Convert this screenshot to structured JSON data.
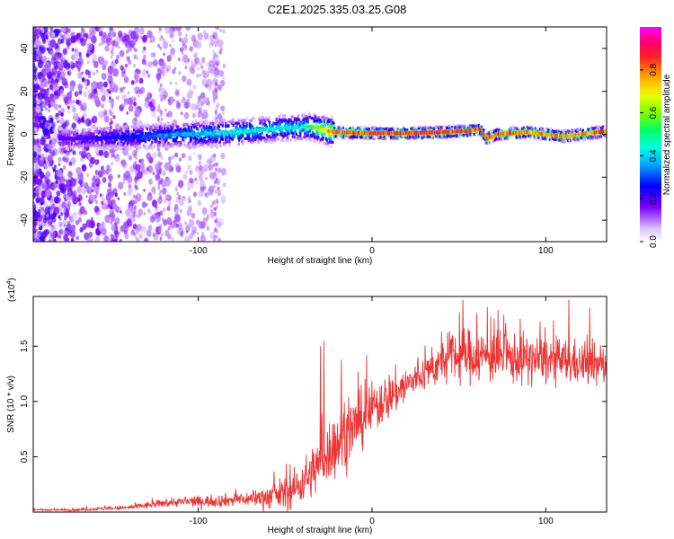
{
  "title": "C2E1.2025.335.03.25.G08",
  "chart_data": [
    {
      "type": "heatmap",
      "title": "C2E1.2025.335.03.25.G08",
      "xlabel": "Height of straight line (km)",
      "ylabel": "Frequency (Hz)",
      "xlim": [
        -195,
        135
      ],
      "ylim": [
        -50,
        50
      ],
      "x_ticks": [
        -100,
        0,
        100
      ],
      "y_ticks": [
        -40,
        -20,
        0,
        20,
        40
      ],
      "colorbar": {
        "label": "Normalized spectral amplitude",
        "range": [
          0,
          1
        ],
        "ticks": [
          "0.0",
          "0.2",
          "0.4",
          "0.6",
          "0.8"
        ],
        "tick_values": [
          0.0,
          0.2,
          0.4,
          0.6,
          0.8
        ]
      },
      "ridge_center_hz": [
        {
          "x": -170,
          "f": -2.0
        },
        {
          "x": -150,
          "f": -1.5
        },
        {
          "x": -130,
          "f": -1.0
        },
        {
          "x": -110,
          "f": 0.0
        },
        {
          "x": -90,
          "f": 0.5
        },
        {
          "x": -70,
          "f": 1.5
        },
        {
          "x": -50,
          "f": 3.0
        },
        {
          "x": -35,
          "f": 3.5
        },
        {
          "x": -22,
          "f": 1.0
        },
        {
          "x": 0,
          "f": 0.5
        },
        {
          "x": 20,
          "f": 0.5
        },
        {
          "x": 40,
          "f": 1.0
        },
        {
          "x": 55,
          "f": 1.5
        },
        {
          "x": 62,
          "f": 2.5
        },
        {
          "x": 66,
          "f": -2.0
        },
        {
          "x": 72,
          "f": 0.0
        },
        {
          "x": 90,
          "f": 1.0
        },
        {
          "x": 110,
          "f": -1.0
        },
        {
          "x": 120,
          "f": 0.0
        },
        {
          "x": 135,
          "f": 1.5
        }
      ],
      "ridge_peak_amplitude": [
        {
          "x": -170,
          "a": 0.2
        },
        {
          "x": -120,
          "a": 0.35
        },
        {
          "x": -80,
          "a": 0.45
        },
        {
          "x": -40,
          "a": 0.45
        },
        {
          "x": -22,
          "a": 0.85
        },
        {
          "x": 40,
          "a": 0.9
        },
        {
          "x": 100,
          "a": 0.8
        },
        {
          "x": 135,
          "a": 0.85
        }
      ]
    },
    {
      "type": "line",
      "xlabel": "Height of straight line (km)",
      "ylabel": "SNR (10 * v/v)",
      "y_multiplier_label": "(x10",
      "y_multiplier_exp": "4",
      "y_multiplier_close": ")",
      "xlim": [
        -195,
        135
      ],
      "ylim": [
        0,
        1.95
      ],
      "x_ticks": [
        -100,
        0,
        100
      ],
      "y_ticks": [
        "0.5",
        "1.0",
        "1.5"
      ],
      "y_tick_values": [
        0.5,
        1.0,
        1.5
      ],
      "series": [
        {
          "name": "SNR",
          "color": "#ee3333",
          "trend": [
            {
              "x": -195,
              "y": 0.02
            },
            {
              "x": -170,
              "y": 0.02
            },
            {
              "x": -140,
              "y": 0.04
            },
            {
              "x": -115,
              "y": 0.09
            },
            {
              "x": -90,
              "y": 0.1
            },
            {
              "x": -70,
              "y": 0.12
            },
            {
              "x": -55,
              "y": 0.15
            },
            {
              "x": -45,
              "y": 0.2
            },
            {
              "x": -35,
              "y": 0.35
            },
            {
              "x": -25,
              "y": 0.55
            },
            {
              "x": -15,
              "y": 0.7
            },
            {
              "x": -5,
              "y": 0.85
            },
            {
              "x": 5,
              "y": 1.0
            },
            {
              "x": 15,
              "y": 1.1
            },
            {
              "x": 25,
              "y": 1.2
            },
            {
              "x": 35,
              "y": 1.3
            },
            {
              "x": 45,
              "y": 1.4
            },
            {
              "x": 55,
              "y": 1.42
            },
            {
              "x": 70,
              "y": 1.4
            },
            {
              "x": 90,
              "y": 1.38
            },
            {
              "x": 110,
              "y": 1.36
            },
            {
              "x": 125,
              "y": 1.33
            },
            {
              "x": 135,
              "y": 1.32
            }
          ],
          "noise_amplitude": [
            {
              "x": -195,
              "a": 0.005
            },
            {
              "x": -150,
              "a": 0.015
            },
            {
              "x": -110,
              "a": 0.04
            },
            {
              "x": -70,
              "a": 0.06
            },
            {
              "x": -40,
              "a": 0.18
            },
            {
              "x": -20,
              "a": 0.28
            },
            {
              "x": 0,
              "a": 0.22
            },
            {
              "x": 30,
              "a": 0.14
            },
            {
              "x": 50,
              "a": 0.22
            },
            {
              "x": 100,
              "a": 0.2
            },
            {
              "x": 135,
              "a": 0.16
            }
          ],
          "spikes": [
            {
              "x": -30,
              "y": 1.5
            },
            {
              "x": -28,
              "y": 1.55
            },
            {
              "x": -18,
              "y": 1.38
            },
            {
              "x": 52,
              "y": 1.92
            },
            {
              "x": 60,
              "y": 1.8
            },
            {
              "x": 70,
              "y": 1.75
            },
            {
              "x": 85,
              "y": 1.75
            },
            {
              "x": 113,
              "y": 1.92
            },
            {
              "x": 125,
              "y": 1.85
            }
          ]
        }
      ]
    }
  ]
}
